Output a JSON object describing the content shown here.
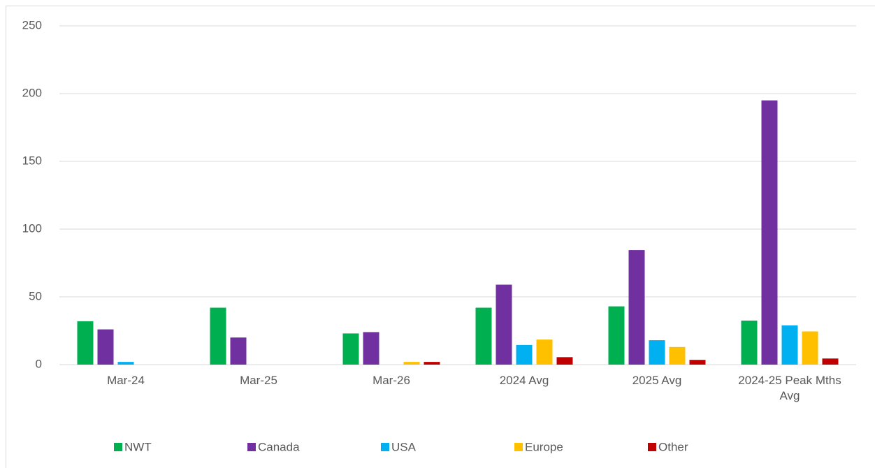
{
  "chart_data": {
    "type": "bar",
    "categories": [
      "Mar-24",
      "Mar-25",
      "Mar-26",
      "2024 Avg",
      "2025 Avg",
      "2024-25 Peak Mths Avg"
    ],
    "series": [
      {
        "name": "NWT",
        "color": "#00b050",
        "values": [
          32,
          42,
          23,
          42,
          43,
          32.5
        ]
      },
      {
        "name": "Canada",
        "color": "#7030a0",
        "values": [
          26,
          20,
          24,
          59,
          84.5,
          195
        ]
      },
      {
        "name": "USA",
        "color": "#00b0f0",
        "values": [
          2,
          0,
          0,
          14.5,
          18,
          29
        ]
      },
      {
        "name": "Europe",
        "color": "#ffc000",
        "values": [
          0,
          0,
          2,
          18.5,
          13,
          24.5
        ]
      },
      {
        "name": "Other",
        "color": "#c00000",
        "values": [
          0,
          0,
          2,
          5.5,
          3.5,
          4.5
        ]
      }
    ],
    "ylim": [
      0,
      250
    ],
    "yticks": [
      0,
      50,
      100,
      150,
      200,
      250
    ],
    "grid": true,
    "legend": "bottom"
  }
}
